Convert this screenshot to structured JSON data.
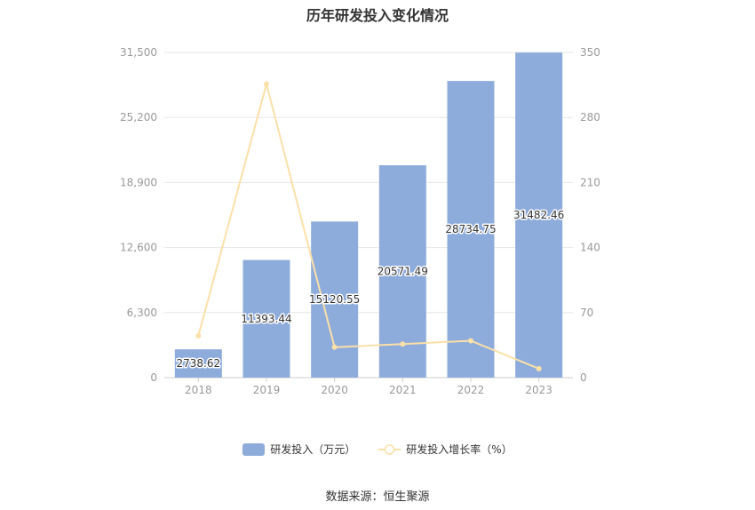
{
  "chart_data": {
    "type": "bar",
    "title": "历年研发投入变化情况",
    "categories": [
      "2018",
      "2019",
      "2020",
      "2021",
      "2022",
      "2023"
    ],
    "series": [
      {
        "name": "研发投入（万元）",
        "type": "bar",
        "axis": "left",
        "values": [
          2738.62,
          11393.44,
          15120.55,
          20571.49,
          28734.75,
          31482.46
        ],
        "labels": [
          "2738.62",
          "11393.44",
          "15120.55",
          "20571.49",
          "28734.75",
          "31482.46"
        ],
        "color": "#8eacdb"
      },
      {
        "name": "研发投入增长率（%）",
        "type": "line",
        "axis": "right",
        "values": [
          45.0,
          316.0,
          32.7,
          36.1,
          39.7,
          9.6
        ],
        "color": "#fbe0a8"
      }
    ],
    "y_left": {
      "ticks": [
        "0",
        "6,300",
        "12,600",
        "18,900",
        "25,200",
        "31,500"
      ],
      "range": [
        0,
        31500
      ]
    },
    "y_right": {
      "ticks": [
        "0",
        "70",
        "140",
        "210",
        "280",
        "350"
      ],
      "range": [
        0,
        350
      ]
    },
    "grid": true,
    "legend_position": "bottom"
  },
  "source": "数据来源：恒生聚源"
}
